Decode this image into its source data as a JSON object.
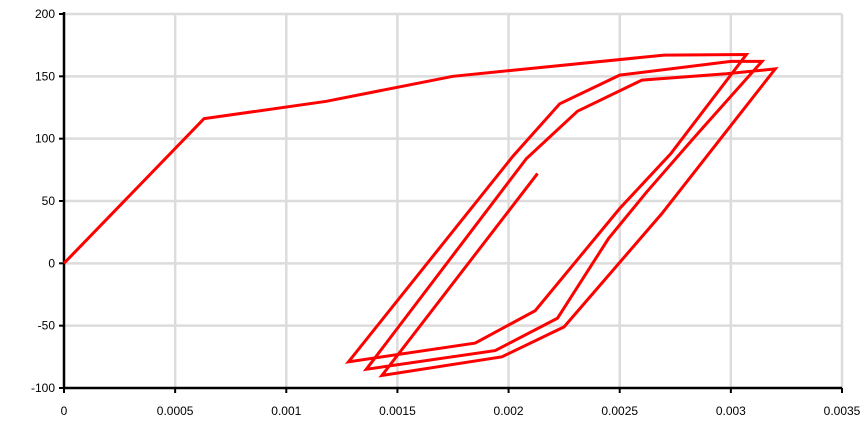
{
  "chart_data": {
    "type": "line",
    "title": "",
    "xlabel": "",
    "ylabel": "",
    "xlim": [
      0,
      0.0035
    ],
    "ylim": [
      -100,
      200
    ],
    "x_ticks": [
      0,
      0.0005,
      0.001,
      0.0015,
      0.002,
      0.0025,
      0.003,
      0.0035
    ],
    "x_tick_labels": [
      "0",
      "0.0005",
      "0.001",
      "0.0015",
      "0.002",
      "0.0025",
      "0.003",
      "0.0035"
    ],
    "y_ticks": [
      -100,
      -50,
      0,
      50,
      100,
      150,
      200
    ],
    "y_tick_labels": [
      "-100",
      "-50",
      "0",
      "50",
      "100",
      "150",
      "200"
    ],
    "grid": true,
    "legend": "none",
    "colors": {
      "series": "#ff0000",
      "grid": "#dcdcdc",
      "axis": "#000000"
    },
    "series": [
      {
        "points": [
          [
            0,
            0
          ],
          [
            0.00063,
            116
          ],
          [
            0.00118,
            130
          ],
          [
            0.00175,
            150
          ],
          [
            0.0027,
            167
          ],
          [
            0.00307,
            167.5
          ],
          [
            0.00273,
            88
          ],
          [
            0.0025,
            44
          ],
          [
            0.00212,
            -38
          ],
          [
            0.00185,
            -64
          ],
          [
            0.00128,
            -79
          ],
          [
            0.00202,
            86
          ],
          [
            0.00223,
            128
          ],
          [
            0.0025,
            151
          ],
          [
            0.003,
            162
          ],
          [
            0.00314,
            162
          ],
          [
            0.00283,
            100
          ],
          [
            0.00262,
            57
          ],
          [
            0.00245,
            20
          ],
          [
            0.00222,
            -44
          ],
          [
            0.00194,
            -70
          ],
          [
            0.00136,
            -85
          ],
          [
            0.00208,
            84
          ],
          [
            0.00231,
            122
          ],
          [
            0.0026,
            147
          ],
          [
            0.00298,
            152
          ],
          [
            0.0032,
            156
          ],
          [
            0.00269,
            40
          ],
          [
            0.00225,
            -51
          ],
          [
            0.00197,
            -75
          ],
          [
            0.00143,
            -90
          ],
          [
            0.00213,
            72
          ]
        ]
      }
    ]
  }
}
